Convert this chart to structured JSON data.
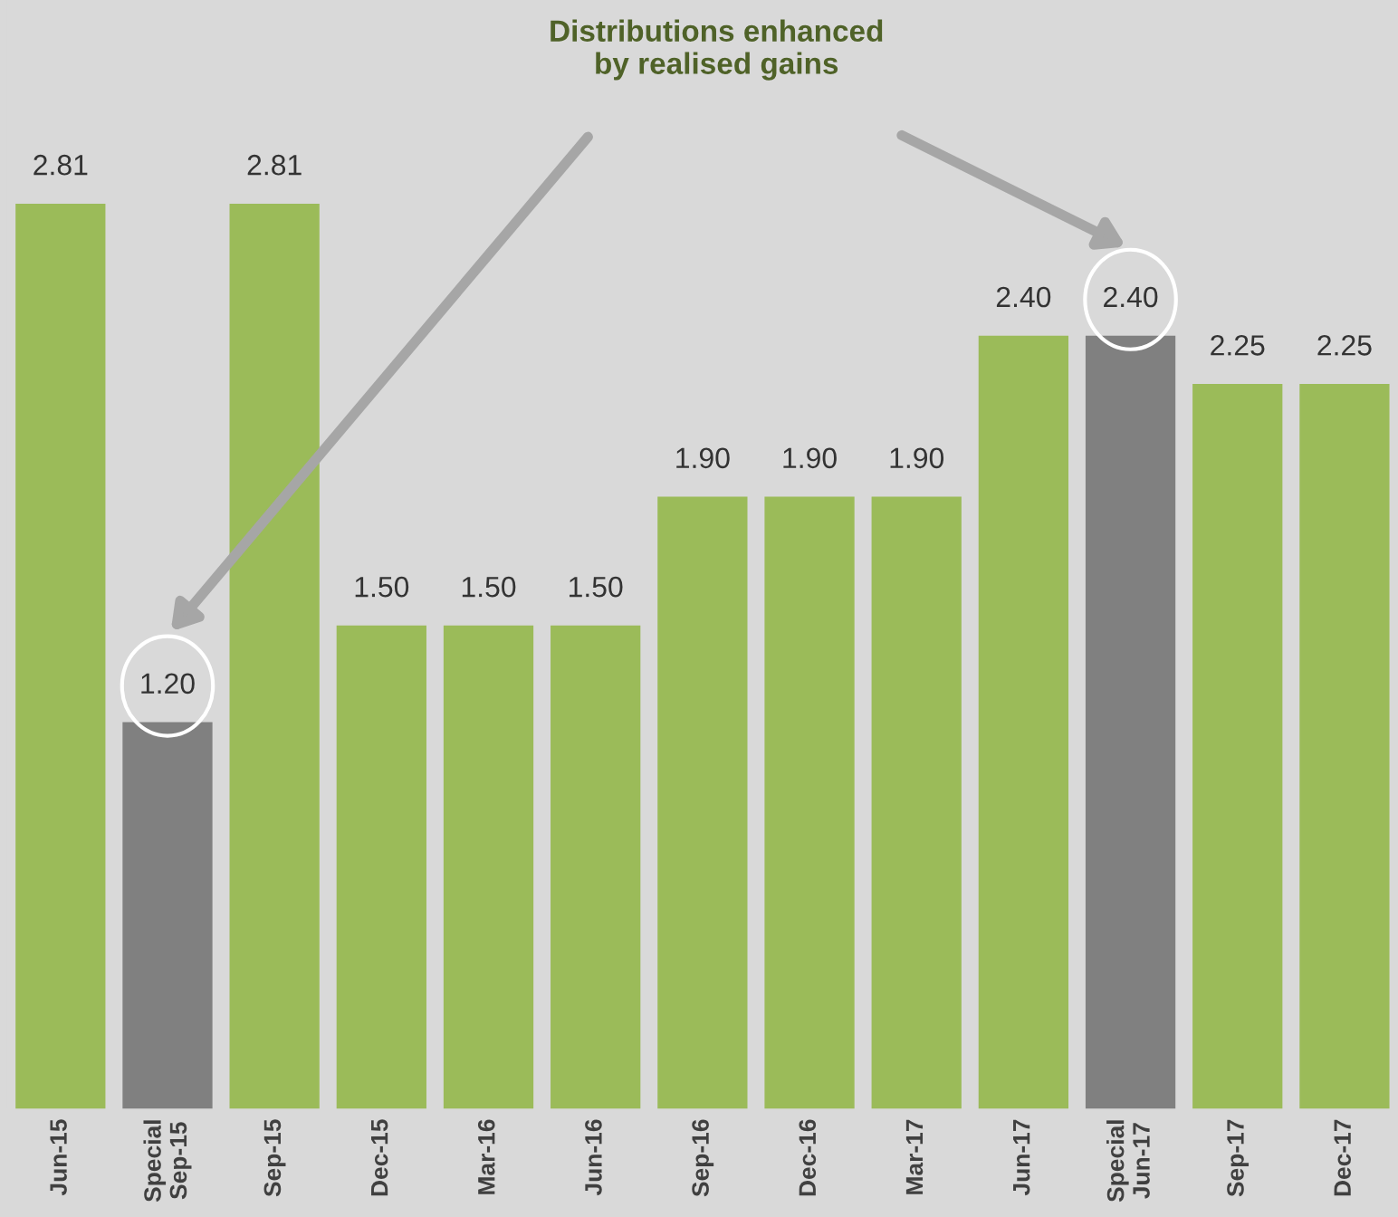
{
  "chart_data": {
    "type": "bar",
    "categories": [
      "Jun-15",
      "Special\nSep-15",
      "Sep-15",
      "Dec-15",
      "Mar-16",
      "Jun-16",
      "Sep-16",
      "Dec-16",
      "Mar-17",
      "Jun-17",
      "Special\nJun-17",
      "Sep-17",
      "Dec-17"
    ],
    "values": [
      2.81,
      1.2,
      2.81,
      1.5,
      1.5,
      1.5,
      1.9,
      1.9,
      1.9,
      2.4,
      2.4,
      2.25,
      2.25
    ],
    "value_labels": [
      "2.81",
      "1.20",
      "2.81",
      "1.50",
      "1.50",
      "1.50",
      "1.90",
      "1.90",
      "1.90",
      "2.40",
      "2.40",
      "2.25",
      "2.25"
    ],
    "colors": [
      "#9bbb59",
      "#808080",
      "#9bbb59",
      "#9bbb59",
      "#9bbb59",
      "#9bbb59",
      "#9bbb59",
      "#9bbb59",
      "#9bbb59",
      "#9bbb59",
      "#808080",
      "#9bbb59",
      "#9bbb59"
    ],
    "annotations": [
      "Distributions enhanced\nby realised gains"
    ],
    "grid": false,
    "legend": false
  }
}
